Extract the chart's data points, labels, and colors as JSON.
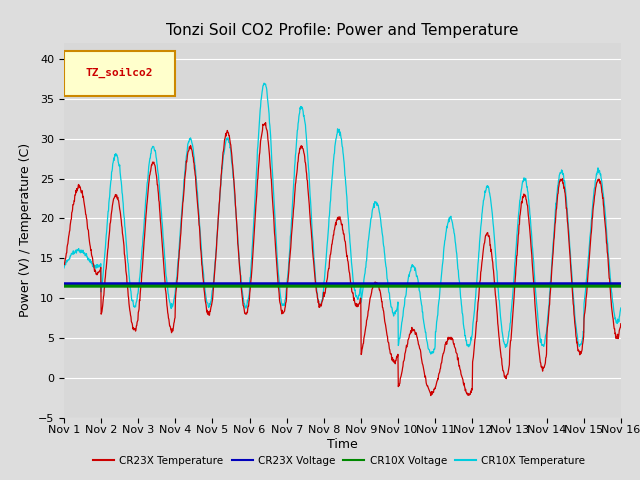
{
  "title": "Tonzi Soil CO2 Profile: Power and Temperature",
  "ylabel": "Power (V) / Temperature (C)",
  "xlabel": "Time",
  "ylim": [
    -5,
    42
  ],
  "yticks": [
    -5,
    0,
    5,
    10,
    15,
    20,
    25,
    30,
    35,
    40
  ],
  "xtick_labels": [
    "Nov 1",
    "Nov 2",
    "Nov 3",
    "Nov 4",
    "Nov 5",
    "Nov 6",
    "Nov 7",
    "Nov 8",
    "Nov 9",
    "Nov 10",
    "Nov 11",
    "Nov 12",
    "Nov 13",
    "Nov 14",
    "Nov 15",
    "Nov 16"
  ],
  "cr23x_voltage_value": 11.8,
  "cr10x_voltage_value": 11.5,
  "cr23x_temp_color": "#cc0000",
  "cr23x_voltage_color": "#0000bb",
  "cr10x_voltage_color": "#008800",
  "cr10x_temp_color": "#00ccdd",
  "bg_color": "#dddddd",
  "plot_bg_color": "#d8d8d8",
  "grid_color": "#ffffff",
  "legend_box_label": "TZ_soilco2",
  "legend_box_bg": "#ffffcc",
  "legend_box_edge": "#cc8800",
  "legend_entries": [
    "CR23X Temperature",
    "CR23X Voltage",
    "CR10X Voltage",
    "CR10X Temperature"
  ],
  "title_fontsize": 11,
  "axis_label_fontsize": 9,
  "tick_fontsize": 8,
  "n_days": 15,
  "pts_per_day": 96
}
